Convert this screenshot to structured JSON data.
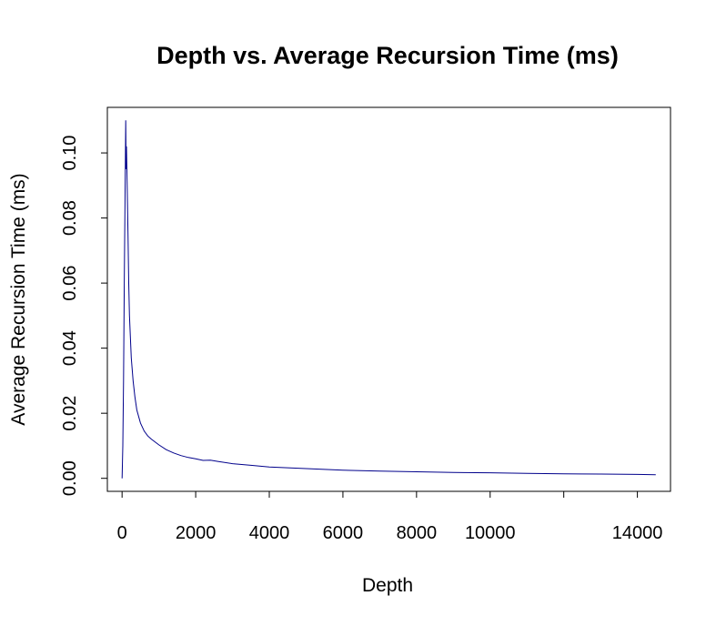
{
  "chart_data": {
    "type": "line",
    "title": "Depth vs. Average Recursion Time (ms)",
    "xlabel": "Depth",
    "ylabel": "Average Recursion Time (ms)",
    "xlim": [
      -400,
      14900
    ],
    "ylim": [
      -0.004,
      0.114
    ],
    "x_ticks": [
      0,
      2000,
      4000,
      6000,
      8000,
      10000,
      12000,
      14000
    ],
    "x_tick_labels": [
      "0",
      "2000",
      "4000",
      "6000",
      "8000",
      "10000",
      "",
      "14000"
    ],
    "y_ticks": [
      0.0,
      0.02,
      0.04,
      0.06,
      0.08,
      0.1
    ],
    "y_tick_labels": [
      "0.00",
      "0.02",
      "0.04",
      "0.06",
      "0.08",
      "0.10"
    ],
    "grid": false,
    "colors": {
      "series": "#00008b"
    },
    "series": [
      {
        "x": [
          0,
          20,
          40,
          60,
          80,
          100,
          110,
          120,
          140,
          160,
          180,
          200,
          250,
          300,
          350,
          400,
          500,
          600,
          700,
          800,
          1000,
          1200,
          1400,
          1600,
          1800,
          2000,
          2200,
          2400,
          2600,
          3000,
          3500,
          4000,
          5000,
          6000,
          7000,
          8000,
          9000,
          10000,
          11000,
          12000,
          13000,
          14000,
          14500
        ],
        "y": [
          0.0,
          0.01,
          0.03,
          0.06,
          0.085,
          0.11,
          0.095,
          0.102,
          0.09,
          0.075,
          0.06,
          0.05,
          0.037,
          0.03,
          0.025,
          0.021,
          0.017,
          0.0145,
          0.013,
          0.012,
          0.0103,
          0.0088,
          0.0078,
          0.007,
          0.0064,
          0.006,
          0.0055,
          0.0056,
          0.0052,
          0.0045,
          0.004,
          0.0035,
          0.003,
          0.0025,
          0.0022,
          0.002,
          0.0018,
          0.0017,
          0.0015,
          0.0014,
          0.0013,
          0.0012,
          0.0011
        ]
      }
    ]
  }
}
